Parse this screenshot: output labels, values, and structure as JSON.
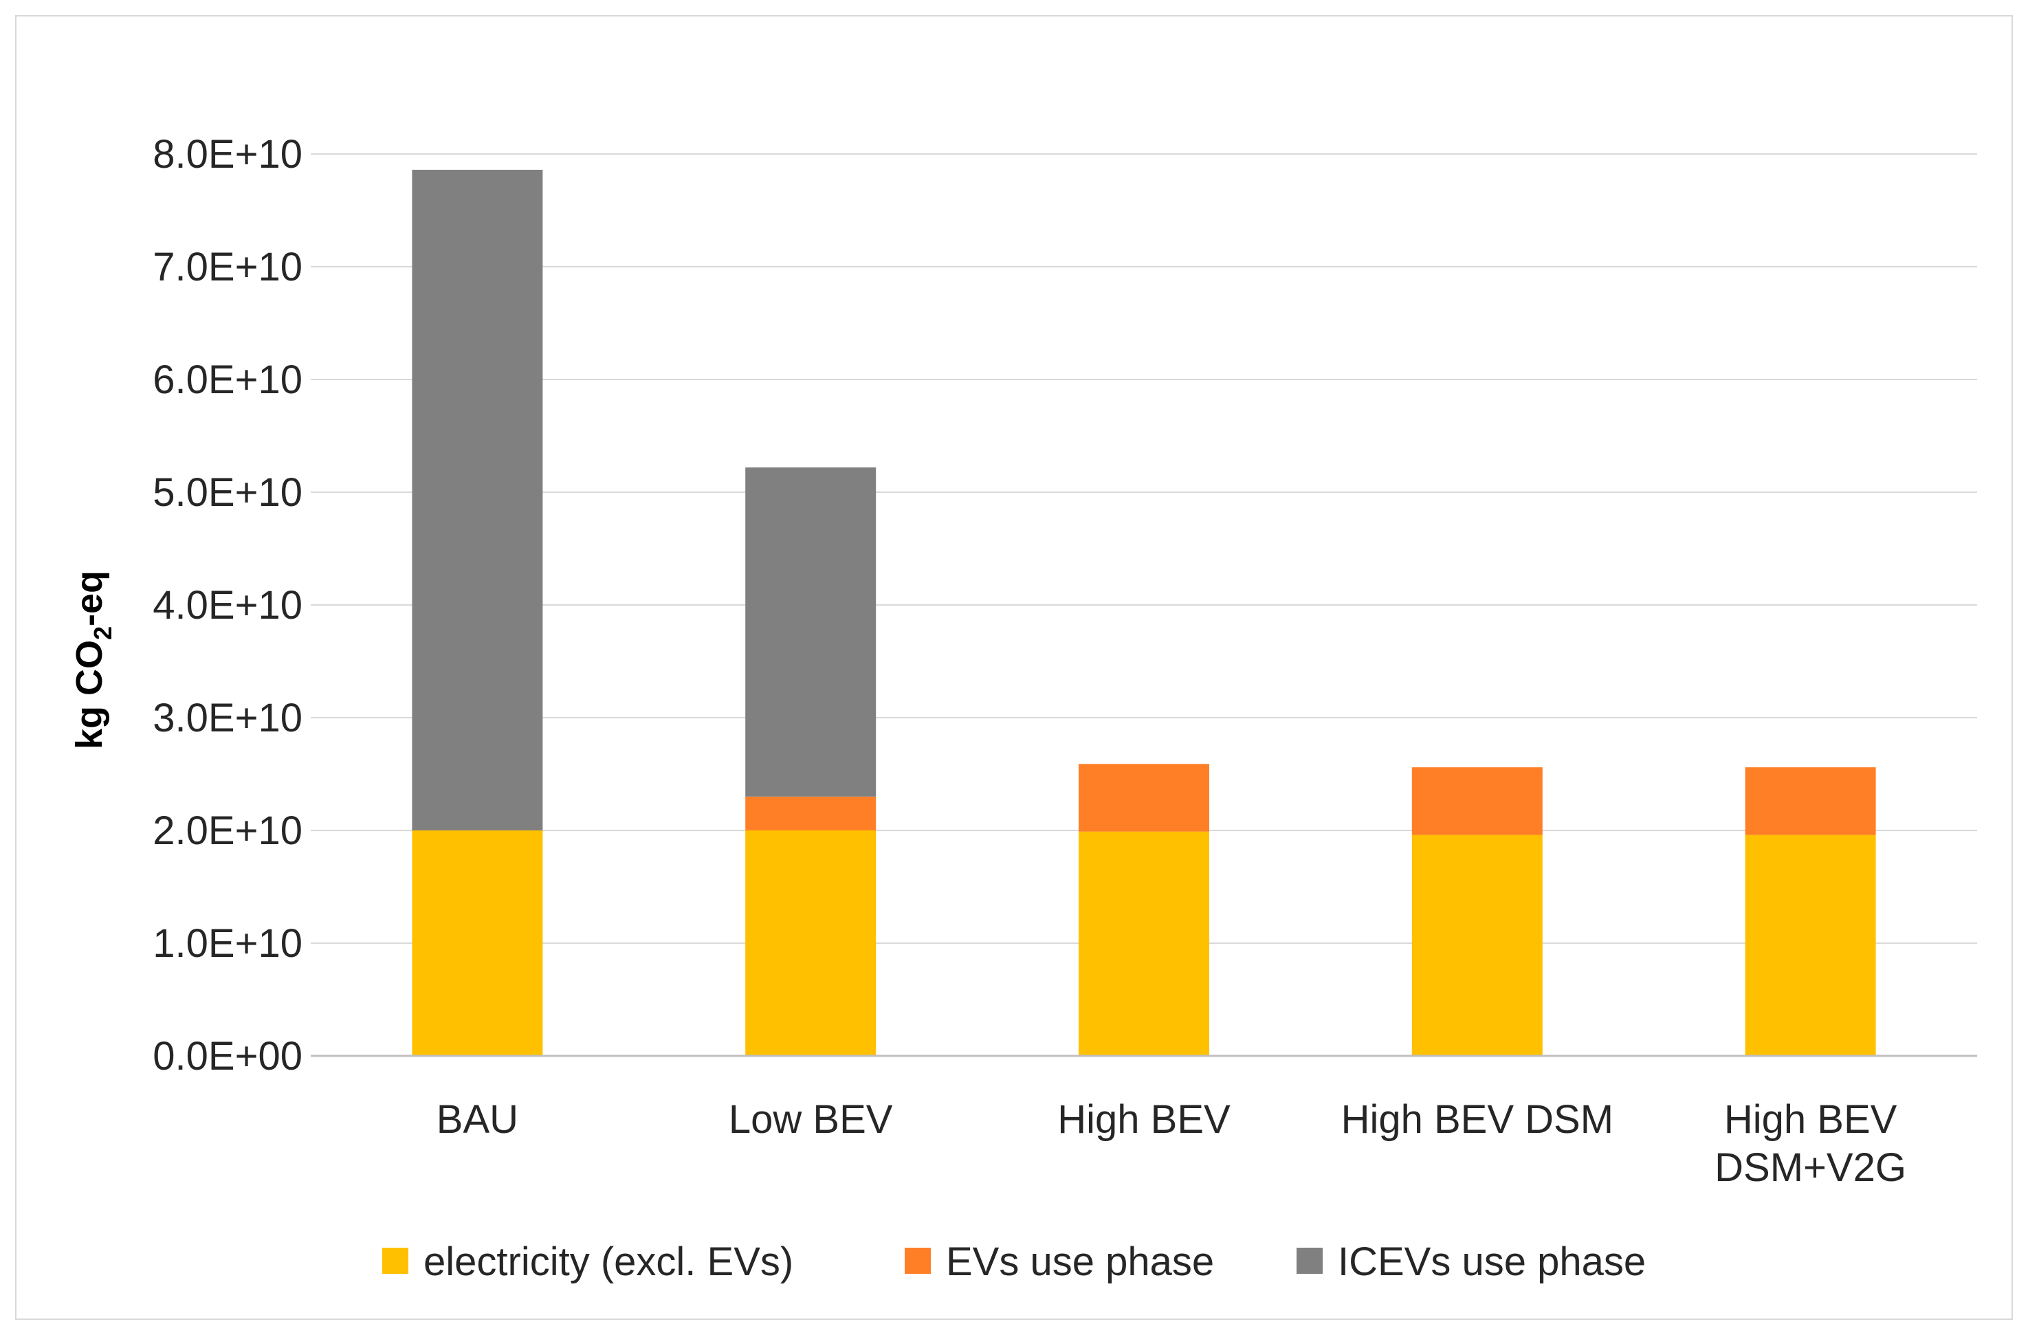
{
  "chart_data": {
    "type": "bar",
    "stacked": true,
    "categories": [
      "BAU",
      "Low BEV",
      "High BEV",
      "High BEV DSM",
      "High BEV DSM+V2G"
    ],
    "category_lines": [
      [
        "BAU"
      ],
      [
        "Low BEV"
      ],
      [
        "High BEV"
      ],
      [
        "High BEV DSM"
      ],
      [
        "High BEV",
        "DSM+V2G"
      ]
    ],
    "series": [
      {
        "name": "electricity (excl. EVs)",
        "color": "#FFC000",
        "values": [
          20000000000.0,
          20000000000.0,
          19900000000.0,
          19600000000.0,
          19600000000.0
        ]
      },
      {
        "name": "EVs use phase",
        "color": "#FF7F27",
        "values": [
          0,
          3000000000.0,
          6000000000.0,
          6000000000.0,
          6000000000.0
        ]
      },
      {
        "name": "ICEVs use phase",
        "color": "#808080",
        "values": [
          58600000000.0,
          29200000000.0,
          0,
          0,
          0
        ]
      }
    ],
    "ylim": [
      0,
      80000000000.0
    ],
    "yticks": [
      0,
      10000000000.0,
      20000000000.0,
      30000000000.0,
      40000000000.0,
      50000000000.0,
      60000000000.0,
      70000000000.0,
      80000000000.0
    ],
    "ytick_labels": [
      "0.0E+00",
      "1.0E+10",
      "2.0E+10",
      "3.0E+10",
      "4.0E+10",
      "5.0E+10",
      "6.0E+10",
      "7.0E+10",
      "8.0E+10"
    ],
    "ylabel": {
      "main": "kg CO",
      "subscript": "2",
      "suffix": "-eq"
    },
    "xlabel": "",
    "title": "",
    "grid": true,
    "legend_position": "bottom"
  }
}
